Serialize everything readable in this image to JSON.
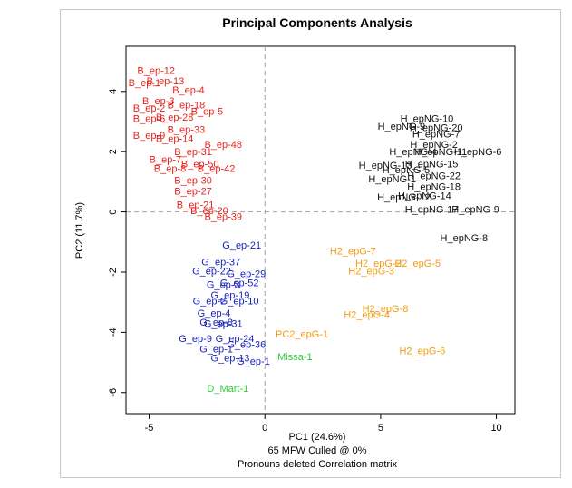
{
  "chart_data": {
    "type": "scatter",
    "title": "Principal Components Analysis",
    "xlabel": "PC1 (24.6%)",
    "xlabel_lines": [
      "65 MFW  Culled @ 0%",
      "Pronouns deleted Correlation matrix"
    ],
    "ylabel": "PC2 (11.7%)",
    "xlim": [
      -6,
      10.8
    ],
    "ylim": [
      -6.7,
      5.5
    ],
    "x_ticks": [
      -5,
      0,
      5,
      10
    ],
    "y_ticks": [
      -6,
      -4,
      -2,
      0,
      2,
      4
    ],
    "grid": false,
    "reference_lines": {
      "x": 0,
      "y": 0,
      "style": "dashed",
      "color": "#a0a0a0"
    },
    "series": [
      {
        "color": "#e8241e",
        "points": [
          {
            "label": "B_ep-12",
            "x": -4.7,
            "y": 4.7
          },
          {
            "label": "B_ep-13",
            "x": -4.3,
            "y": 4.35
          },
          {
            "label": "B_ep-1",
            "x": -5.2,
            "y": 4.3
          },
          {
            "label": "B_ep-4",
            "x": -3.3,
            "y": 4.05
          },
          {
            "label": "B_ep-3",
            "x": -4.6,
            "y": 3.7
          },
          {
            "label": "B_ep-2",
            "x": -5.0,
            "y": 3.45
          },
          {
            "label": "B_ep-18",
            "x": -3.4,
            "y": 3.55
          },
          {
            "label": "B_ep-5",
            "x": -2.5,
            "y": 3.35
          },
          {
            "label": "B_ep-6",
            "x": -5.0,
            "y": 3.1
          },
          {
            "label": "B_ep-28",
            "x": -3.9,
            "y": 3.15
          },
          {
            "label": "B_ep-33",
            "x": -3.4,
            "y": 2.75
          },
          {
            "label": "B_ep-9",
            "x": -5.0,
            "y": 2.55
          },
          {
            "label": "B_ep-14",
            "x": -3.9,
            "y": 2.45
          },
          {
            "label": "B_ep-48",
            "x": -1.8,
            "y": 2.25
          },
          {
            "label": "B_ep-31",
            "x": -3.1,
            "y": 2.0
          },
          {
            "label": "B_ep-7",
            "x": -4.3,
            "y": 1.75
          },
          {
            "label": "B_ep-50",
            "x": -2.8,
            "y": 1.6
          },
          {
            "label": "B_ep-42",
            "x": -2.1,
            "y": 1.45
          },
          {
            "label": "B_ep-8",
            "x": -4.1,
            "y": 1.45
          },
          {
            "label": "B_ep-30",
            "x": -3.1,
            "y": 1.05
          },
          {
            "label": "B_ep-27",
            "x": -3.1,
            "y": 0.7
          },
          {
            "label": "B_ep-21",
            "x": -3.0,
            "y": 0.25
          },
          {
            "label": "B_ep-20",
            "x": -2.4,
            "y": 0.05
          },
          {
            "label": "B_ep-39",
            "x": -1.8,
            "y": -0.15
          }
        ]
      },
      {
        "color": "#111111",
        "points": [
          {
            "label": "H_epNG-10",
            "x": 7.0,
            "y": 3.1
          },
          {
            "label": "H_epNG-9",
            "x": 5.9,
            "y": 2.85
          },
          {
            "label": "H_epNG-20",
            "x": 7.4,
            "y": 2.8
          },
          {
            "label": "H_epNG-7",
            "x": 7.4,
            "y": 2.6
          },
          {
            "label": "H_epNG-2",
            "x": 7.3,
            "y": 2.25
          },
          {
            "label": "H_epNG-4",
            "x": 6.4,
            "y": 2.0
          },
          {
            "label": "H_epNG-11",
            "x": 7.6,
            "y": 2.0
          },
          {
            "label": "H_epNG-6",
            "x": 9.2,
            "y": 2.0
          },
          {
            "label": "H_epNG-15",
            "x": 7.2,
            "y": 1.6
          },
          {
            "label": "H_epNG-13",
            "x": 5.2,
            "y": 1.55
          },
          {
            "label": "H_epNG-5",
            "x": 6.1,
            "y": 1.4
          },
          {
            "label": "H_epNG-1",
            "x": 5.5,
            "y": 1.1
          },
          {
            "label": "H_epNG-22",
            "x": 7.3,
            "y": 1.2
          },
          {
            "label": "H_epNG-18",
            "x": 7.3,
            "y": 0.85
          },
          {
            "label": "H_epNG-12",
            "x": 6.0,
            "y": 0.5
          },
          {
            "label": "H_epNG-14",
            "x": 6.9,
            "y": 0.55
          },
          {
            "label": "H_epNG-17",
            "x": 7.2,
            "y": 0.1
          },
          {
            "label": "H_epNG-9",
            "x": 9.1,
            "y": 0.1
          },
          {
            "label": "H_epNG-8",
            "x": 8.6,
            "y": -0.85
          }
        ]
      },
      {
        "color": "#1a24b8",
        "points": [
          {
            "label": "G_ep-21",
            "x": -1.0,
            "y": -1.1
          },
          {
            "label": "G_ep-37",
            "x": -1.9,
            "y": -1.65
          },
          {
            "label": "G_ep-29",
            "x": -0.8,
            "y": -2.05
          },
          {
            "label": "G_ep-22",
            "x": -2.3,
            "y": -1.95
          },
          {
            "label": "G_ep-52",
            "x": -1.1,
            "y": -2.35
          },
          {
            "label": "G_ep-3",
            "x": -1.8,
            "y": -2.4
          },
          {
            "label": "G_ep-19",
            "x": -1.5,
            "y": -2.75
          },
          {
            "label": "G_ep-10",
            "x": -1.1,
            "y": -2.95
          },
          {
            "label": "G_ep-2",
            "x": -2.4,
            "y": -2.95
          },
          {
            "label": "G_ep-4",
            "x": -2.2,
            "y": -3.35
          },
          {
            "label": "G_ep-8",
            "x": -2.1,
            "y": -3.65
          },
          {
            "label": "G_ep-31",
            "x": -1.8,
            "y": -3.7
          },
          {
            "label": "G_ep-9",
            "x": -3.0,
            "y": -4.2
          },
          {
            "label": "G_ep-24",
            "x": -1.3,
            "y": -4.2
          },
          {
            "label": "G_ep-36",
            "x": -0.8,
            "y": -4.4
          },
          {
            "label": "G_ep-1",
            "x": -2.1,
            "y": -4.55
          },
          {
            "label": "G_ep-13",
            "x": -1.5,
            "y": -4.85
          },
          {
            "label": "G_ep-1",
            "x": -0.5,
            "y": -4.95
          }
        ]
      },
      {
        "color": "#2ecc34",
        "points": [
          {
            "label": "Missa-1",
            "x": 1.3,
            "y": -4.8
          },
          {
            "label": "D_Mart-1",
            "x": -1.6,
            "y": -5.85
          }
        ]
      },
      {
        "color": "#f39c12",
        "points": [
          {
            "label": "H2_epG-7",
            "x": 3.8,
            "y": -1.3
          },
          {
            "label": "H2_epG-2",
            "x": 4.9,
            "y": -1.7
          },
          {
            "label": "H2_epG-5",
            "x": 6.6,
            "y": -1.7
          },
          {
            "label": "H2_epG-3",
            "x": 4.6,
            "y": -1.95
          },
          {
            "label": "H2_epG-8",
            "x": 5.2,
            "y": -3.2
          },
          {
            "label": "H2_epG-4",
            "x": 4.4,
            "y": -3.4
          },
          {
            "label": "PC2_epG-1",
            "x": 1.6,
            "y": -4.05
          },
          {
            "label": "H2_epG-6",
            "x": 6.8,
            "y": -4.6
          }
        ]
      }
    ]
  }
}
